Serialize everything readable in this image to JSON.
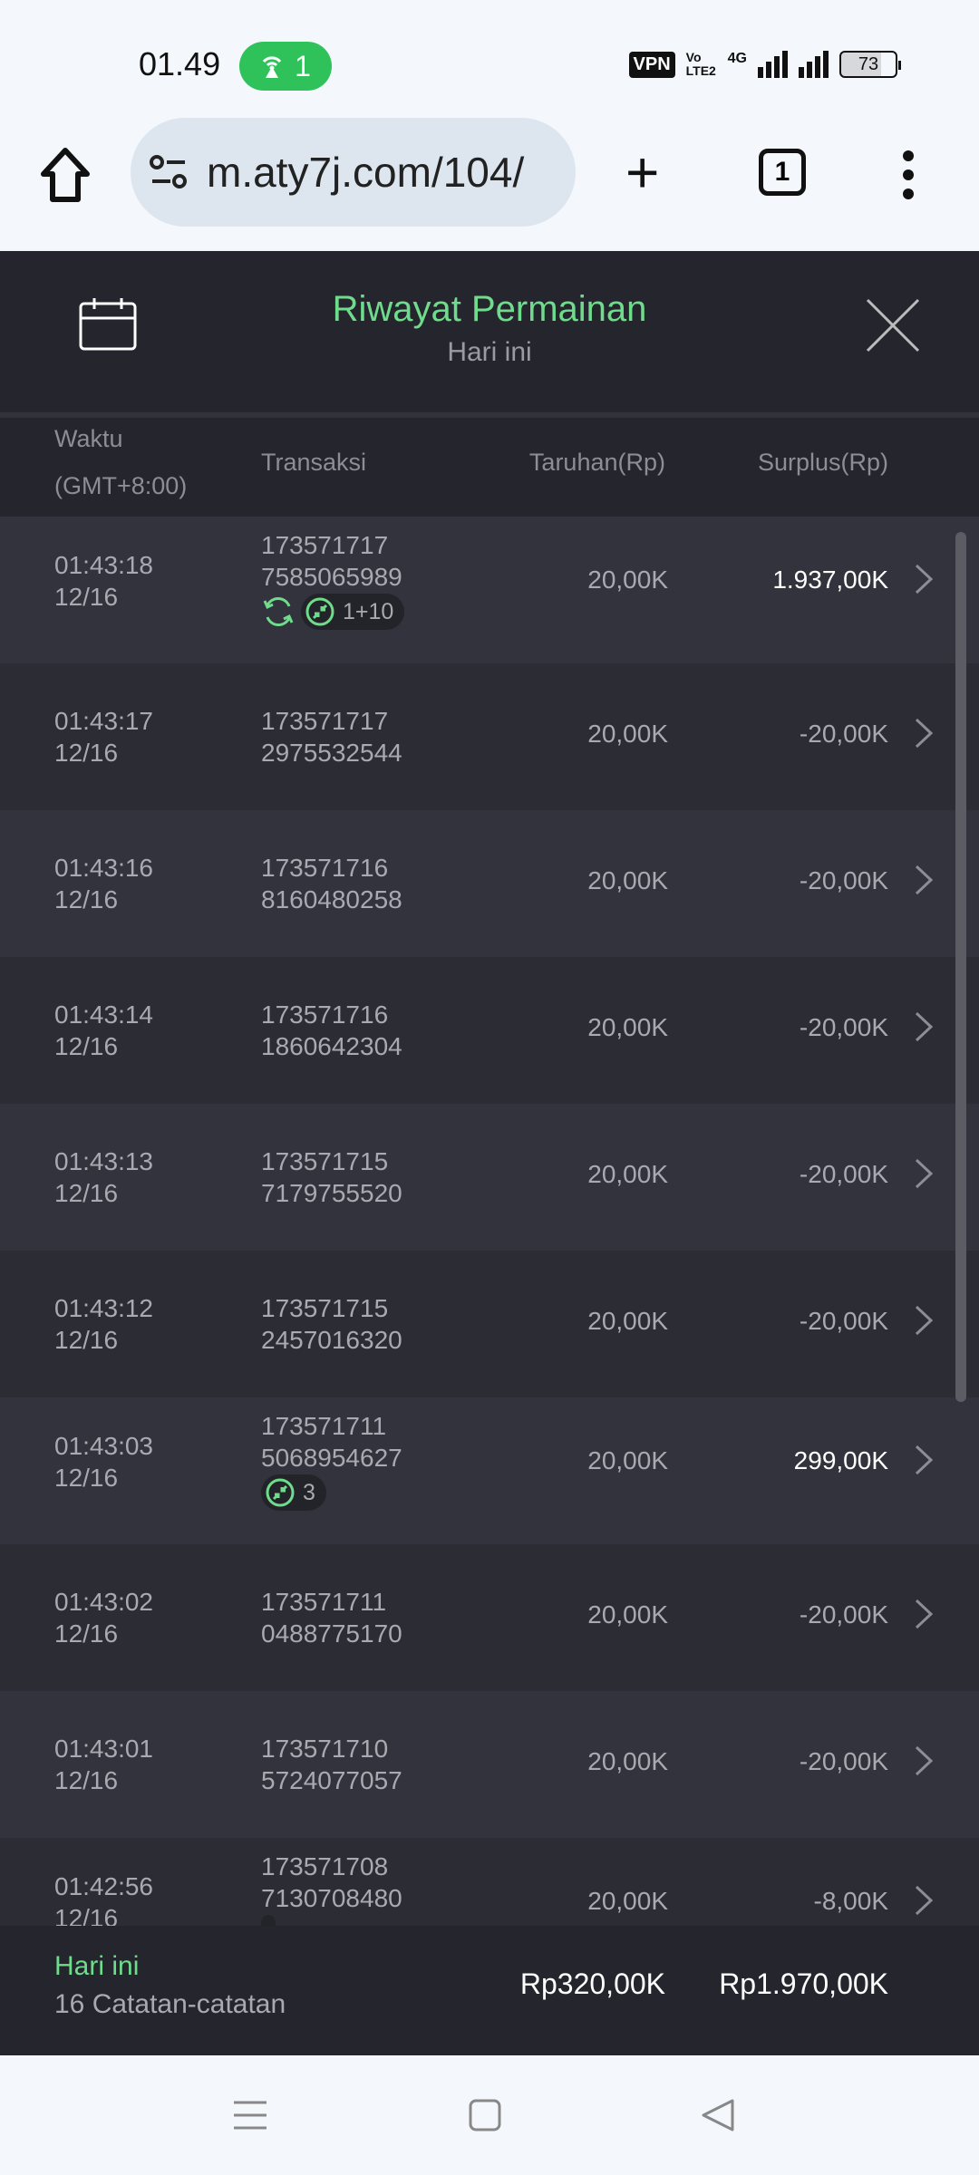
{
  "status_bar": {
    "time": "01.49",
    "hotspot_count": "1",
    "vpn": "VPN",
    "volte": "Vo LTE2",
    "network": "4G",
    "battery": "73"
  },
  "browser": {
    "url": "m.aty7j.com/104/",
    "tab_count": "1"
  },
  "modal": {
    "title": "Riwayat Permainan",
    "subtitle": "Hari ini",
    "columns": {
      "time": "Waktu",
      "time_tz": "(GMT+8:00)",
      "transaction": "Transaksi",
      "bet": "Taruhan(Rp)",
      "surplus": "Surplus(Rp)"
    },
    "rows": [
      {
        "time": "01:43:18",
        "date": "12/16",
        "tx1": "173571717",
        "tx2": "7585065989",
        "bet": "20,00K",
        "surplus": "1.937,00K",
        "win": true,
        "tags": {
          "refresh": true,
          "badge": "1+10"
        }
      },
      {
        "time": "01:43:17",
        "date": "12/16",
        "tx1": "173571717",
        "tx2": "2975532544",
        "bet": "20,00K",
        "surplus": "-20,00K"
      },
      {
        "time": "01:43:16",
        "date": "12/16",
        "tx1": "173571716",
        "tx2": "8160480258",
        "bet": "20,00K",
        "surplus": "-20,00K"
      },
      {
        "time": "01:43:14",
        "date": "12/16",
        "tx1": "173571716",
        "tx2": "1860642304",
        "bet": "20,00K",
        "surplus": "-20,00K"
      },
      {
        "time": "01:43:13",
        "date": "12/16",
        "tx1": "173571715",
        "tx2": "7179755520",
        "bet": "20,00K",
        "surplus": "-20,00K"
      },
      {
        "time": "01:43:12",
        "date": "12/16",
        "tx1": "173571715",
        "tx2": "2457016320",
        "bet": "20,00K",
        "surplus": "-20,00K"
      },
      {
        "time": "01:43:03",
        "date": "12/16",
        "tx1": "173571711",
        "tx2": "5068954627",
        "bet": "20,00K",
        "surplus": "299,00K",
        "win": true,
        "tags": {
          "refresh": false,
          "badge": "3"
        }
      },
      {
        "time": "01:43:02",
        "date": "12/16",
        "tx1": "173571711",
        "tx2": "0488775170",
        "bet": "20,00K",
        "surplus": "-20,00K"
      },
      {
        "time": "01:43:01",
        "date": "12/16",
        "tx1": "173571710",
        "tx2": "5724077057",
        "bet": "20,00K",
        "surplus": "-20,00K"
      },
      {
        "time": "01:42:56",
        "date": "12/16",
        "tx1": "173571708",
        "tx2": "7130708480",
        "bet": "20,00K",
        "surplus": "-8,00K",
        "tags": {
          "refresh": false,
          "badge": ""
        }
      }
    ],
    "footer": {
      "period": "Hari ini",
      "count": "16 Catatan-catatan",
      "total_bet": "Rp320,00K",
      "total_surplus": "Rp1.970,00K"
    }
  },
  "colors": {
    "accent": "#6fdc8c",
    "background": "#25252d"
  }
}
